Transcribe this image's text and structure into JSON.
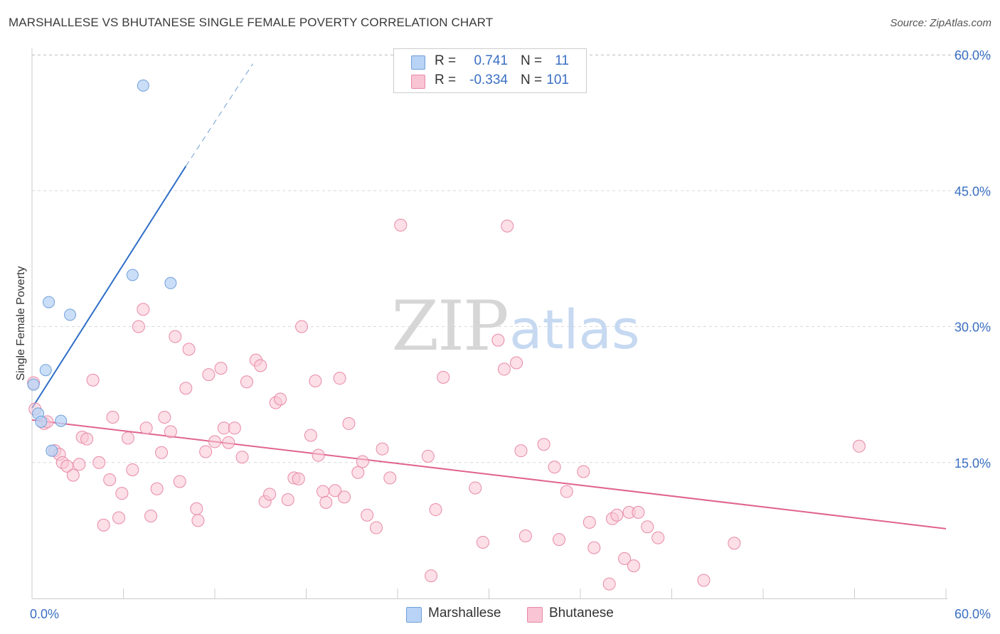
{
  "title": "MARSHALLESE VS BHUTANESE SINGLE FEMALE POVERTY CORRELATION CHART",
  "source": "Source: ZipAtlas.com",
  "watermark": {
    "zip": "ZIP",
    "atlas": "atlas"
  },
  "colors": {
    "marshallese_fill": "#b8d3f5",
    "marshallese_stroke": "#6f9fd8",
    "marshallese_line": "#2f6fc6",
    "bhutanese_fill": "#f9c4d4",
    "bhutanese_stroke": "#e88aa8",
    "bhutanese_line": "#e0648f",
    "tick_label": "#3a6fc2",
    "grid": "#d9d9d9"
  },
  "stats": [
    {
      "series": "Marshallese",
      "r_label": "R =",
      "r_value": "0.741",
      "n_label": "N =",
      "n_value": "11"
    },
    {
      "series": "Bhutanese",
      "r_label": "R =",
      "r_value": "-0.334",
      "n_label": "N =",
      "n_value": "101"
    }
  ],
  "legend": {
    "marshallese": "Marshallese",
    "bhutanese": "Bhutanese"
  },
  "chart_data": {
    "type": "scatter",
    "title": "MARSHALLESE VS BHUTANESE SINGLE FEMALE POVERTY CORRELATION CHART",
    "xlabel": "",
    "ylabel": "Single Female Poverty",
    "xlim": [
      0,
      60
    ],
    "ylim": [
      0,
      62
    ],
    "x_tick_labels": [
      "0.0%",
      "60.0%"
    ],
    "y_ticks": [
      15,
      30,
      45,
      60
    ],
    "y_tick_labels": [
      "15.0%",
      "30.0%",
      "45.0%",
      "60.0%"
    ],
    "grid": true,
    "series": [
      {
        "name": "Marshallese",
        "r": 0.741,
        "n": 11,
        "points": [
          [
            0.1,
            23.6
          ],
          [
            0.4,
            20.4
          ],
          [
            0.6,
            19.5
          ],
          [
            0.9,
            25.2
          ],
          [
            1.1,
            32.7
          ],
          [
            1.3,
            16.3
          ],
          [
            1.9,
            19.6
          ],
          [
            2.5,
            31.3
          ],
          [
            6.6,
            35.7
          ],
          [
            7.3,
            56.6
          ],
          [
            9.1,
            34.8
          ]
        ],
        "trend": {
          "x0": 0,
          "y0": 21.0,
          "x1": 10.1,
          "y1": 47.7,
          "dash_to_x": 14.5,
          "dash_to_y": 59.0
        }
      },
      {
        "name": "Bhutanese",
        "r": -0.334,
        "n": 101,
        "points": [
          [
            0.1,
            23.8
          ],
          [
            0.2,
            20.9
          ],
          [
            0.8,
            19.3
          ],
          [
            1.0,
            19.5
          ],
          [
            1.5,
            16.3
          ],
          [
            1.8,
            15.9
          ],
          [
            2.0,
            15.0
          ],
          [
            2.3,
            14.6
          ],
          [
            2.7,
            13.6
          ],
          [
            3.1,
            14.8
          ],
          [
            3.3,
            17.8
          ],
          [
            3.6,
            17.6
          ],
          [
            4.0,
            24.1
          ],
          [
            4.4,
            15.0
          ],
          [
            4.7,
            8.1
          ],
          [
            5.1,
            13.1
          ],
          [
            5.3,
            20.0
          ],
          [
            5.7,
            8.9
          ],
          [
            5.9,
            11.6
          ],
          [
            6.3,
            17.7
          ],
          [
            6.6,
            14.2
          ],
          [
            7.0,
            30.0
          ],
          [
            7.3,
            31.9
          ],
          [
            7.5,
            18.8
          ],
          [
            7.8,
            9.1
          ],
          [
            8.2,
            12.1
          ],
          [
            8.5,
            16.1
          ],
          [
            8.7,
            20.0
          ],
          [
            9.1,
            18.4
          ],
          [
            9.4,
            28.9
          ],
          [
            9.7,
            12.9
          ],
          [
            10.1,
            23.2
          ],
          [
            10.3,
            27.5
          ],
          [
            10.8,
            9.9
          ],
          [
            10.9,
            8.6
          ],
          [
            11.4,
            16.2
          ],
          [
            11.6,
            24.7
          ],
          [
            12.0,
            17.3
          ],
          [
            12.4,
            25.4
          ],
          [
            12.6,
            18.8
          ],
          [
            12.9,
            17.2
          ],
          [
            13.3,
            18.8
          ],
          [
            13.8,
            15.6
          ],
          [
            14.1,
            23.9
          ],
          [
            14.7,
            26.3
          ],
          [
            15.0,
            25.7
          ],
          [
            15.3,
            10.7
          ],
          [
            15.6,
            11.5
          ],
          [
            16.0,
            21.6
          ],
          [
            16.3,
            22.0
          ],
          [
            16.8,
            10.9
          ],
          [
            17.2,
            13.3
          ],
          [
            17.5,
            13.2
          ],
          [
            17.7,
            30.0
          ],
          [
            18.3,
            18.0
          ],
          [
            18.6,
            24.0
          ],
          [
            18.8,
            15.8
          ],
          [
            19.1,
            11.8
          ],
          [
            19.3,
            10.6
          ],
          [
            19.9,
            11.9
          ],
          [
            20.2,
            24.3
          ],
          [
            20.5,
            11.2
          ],
          [
            20.8,
            19.3
          ],
          [
            21.4,
            13.9
          ],
          [
            21.7,
            15.1
          ],
          [
            22.0,
            9.2
          ],
          [
            22.6,
            7.8
          ],
          [
            23.0,
            16.5
          ],
          [
            23.5,
            13.3
          ],
          [
            24.2,
            41.2
          ],
          [
            26.0,
            15.7
          ],
          [
            26.2,
            2.5
          ],
          [
            26.5,
            9.8
          ],
          [
            27.0,
            24.4
          ],
          [
            29.1,
            12.2
          ],
          [
            29.6,
            6.2
          ],
          [
            30.6,
            28.5
          ],
          [
            31.0,
            25.3
          ],
          [
            31.2,
            41.1
          ],
          [
            31.8,
            26.0
          ],
          [
            32.1,
            16.3
          ],
          [
            32.4,
            6.9
          ],
          [
            33.6,
            17.0
          ],
          [
            34.3,
            14.5
          ],
          [
            34.6,
            6.5
          ],
          [
            35.1,
            11.8
          ],
          [
            36.2,
            14.0
          ],
          [
            36.6,
            8.4
          ],
          [
            36.9,
            5.6
          ],
          [
            37.9,
            1.6
          ],
          [
            38.1,
            8.8
          ],
          [
            38.4,
            9.2
          ],
          [
            38.9,
            4.4
          ],
          [
            39.2,
            9.5
          ],
          [
            39.5,
            3.6
          ],
          [
            39.8,
            9.5
          ],
          [
            40.4,
            7.9
          ],
          [
            41.1,
            6.7
          ],
          [
            44.1,
            2.0
          ],
          [
            46.1,
            6.1
          ],
          [
            54.3,
            16.8
          ]
        ],
        "trend": {
          "x0": 0,
          "y0": 19.7,
          "x1": 60,
          "y1": 7.7
        }
      }
    ]
  }
}
